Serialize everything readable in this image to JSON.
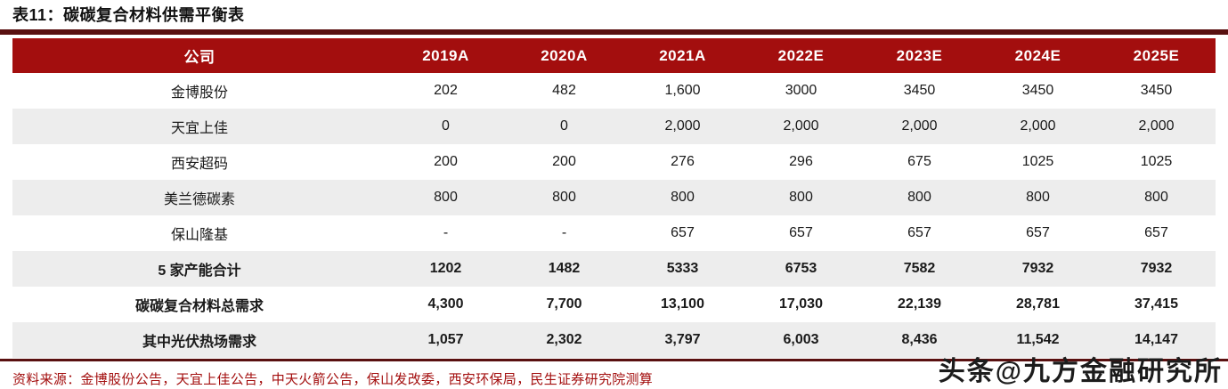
{
  "title": "表11：碳碳复合材料供需平衡表",
  "source_note": "资料来源：金博股份公告，天宜上佳公告，中天火箭公告，保山发改委，西安环保局，民生证券研究院测算",
  "watermark": "头条@九方金融研究所",
  "colors": {
    "header_bg": "#A30E0E",
    "title_bar": "#591010",
    "row_alt_bg": "#EDEDED",
    "source_text": "#A30E0E"
  },
  "chart_data": {
    "type": "table",
    "title": "碳碳复合材料供需平衡表",
    "columns": [
      "公司",
      "2019A",
      "2020A",
      "2021A",
      "2022E",
      "2023E",
      "2024E",
      "2025E"
    ],
    "rows": [
      {
        "label": "金博股份",
        "bold": false,
        "values": [
          "202",
          "482",
          "1,600",
          "3000",
          "3450",
          "3450",
          "3450"
        ]
      },
      {
        "label": "天宜上佳",
        "bold": false,
        "values": [
          "0",
          "0",
          "2,000",
          "2,000",
          "2,000",
          "2,000",
          "2,000"
        ]
      },
      {
        "label": "西安超码",
        "bold": false,
        "values": [
          "200",
          "200",
          "276",
          "296",
          "675",
          "1025",
          "1025"
        ]
      },
      {
        "label": "美兰德碳素",
        "bold": false,
        "values": [
          "800",
          "800",
          "800",
          "800",
          "800",
          "800",
          "800"
        ]
      },
      {
        "label": "保山隆基",
        "bold": false,
        "values": [
          "-",
          "-",
          "657",
          "657",
          "657",
          "657",
          "657"
        ]
      },
      {
        "label": "5 家产能合计",
        "bold": true,
        "values": [
          "1202",
          "1482",
          "5333",
          "6753",
          "7582",
          "7932",
          "7932"
        ]
      },
      {
        "label": "碳碳复合材料总需求",
        "bold": true,
        "values": [
          "4,300",
          "7,700",
          "13,100",
          "17,030",
          "22,139",
          "28,781",
          "37,415"
        ]
      },
      {
        "label": "其中光伏热场需求",
        "bold": true,
        "values": [
          "1,057",
          "2,302",
          "3,797",
          "6,003",
          "8,436",
          "11,542",
          "14,147"
        ]
      }
    ]
  }
}
